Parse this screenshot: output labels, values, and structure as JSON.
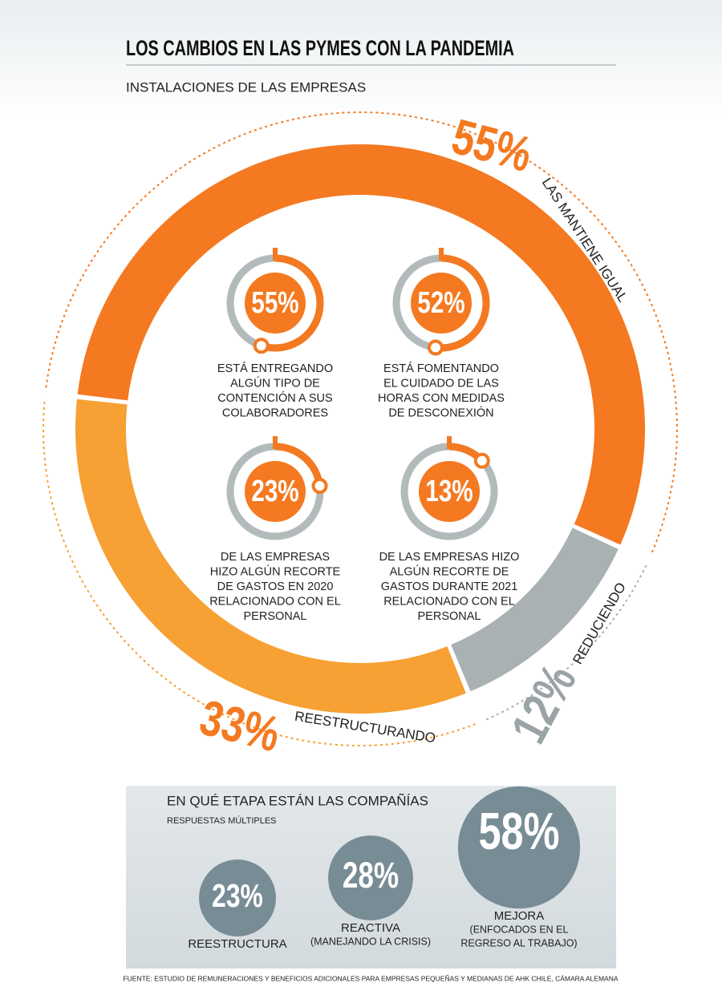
{
  "title": "LOS CAMBIOS EN LAS PYMES CON LA PANDEMIA",
  "subtitle": "INSTALACIONES DE LAS EMPRESAS",
  "chart_data": {
    "type": "donut",
    "categories": [
      "LAS MANTIENE IGUAL",
      "REDUCIENDO",
      "REESTRUCTURANDO"
    ],
    "values": [
      55,
      12,
      33
    ],
    "value_labels": [
      "55%",
      "12%",
      "33%"
    ],
    "colors": [
      "#f47920",
      "#a9b1b3",
      "#f7a033"
    ]
  },
  "gauges": [
    {
      "value": 55,
      "label": "55%",
      "text": [
        "ESTÁ ENTREGANDO",
        "ALGÚN TIPO DE",
        "CONTENCIÓN A SUS",
        "COLABORADORES"
      ]
    },
    {
      "value": 52,
      "label": "52%",
      "text": [
        "ESTÁ FOMENTANDO",
        "EL CUIDADO DE LAS",
        "HORAS CON MEDIDAS",
        "DE DESCONEXIÓN"
      ]
    },
    {
      "value": 23,
      "label": "23%",
      "text": [
        "DE LAS  EMPRESAS",
        "HIZO ALGÚN RECORTE",
        "DE GASTOS EN 2020",
        "RELACIONADO CON EL",
        "PERSONAL"
      ]
    },
    {
      "value": 13,
      "label": "13%",
      "text": [
        "DE LAS EMPRESAS HIZO",
        "ALGÚN RECORTE DE",
        "GASTOS DURANTE 2021",
        "RELACIONADO CON EL",
        "PERSONAL"
      ]
    }
  ],
  "stages": {
    "title": "EN QUÉ ETAPA ESTÁN LAS COMPAÑÍAS",
    "subtitle": "RESPUESTAS MÚLTIPLES",
    "items": [
      {
        "value": 23,
        "label": "23%",
        "text": [
          "REESTRUCTURA"
        ]
      },
      {
        "value": 28,
        "label": "28%",
        "text": [
          "REACTIVA",
          "(MANEJANDO LA CRISIS)"
        ]
      },
      {
        "value": 58,
        "label": "58%",
        "text": [
          "MEJORA",
          "(ENFOCADOS EN EL",
          "REGRESO AL TRABAJO)"
        ]
      }
    ]
  },
  "source": "FUENTE: ESTUDIO DE REMUNERACIONES Y BENEFICIOS ADICIONALES PARA EMPRESAS PEQUEÑAS Y MEDIANAS DE AHK CHILE, CÁMARA ALEMANA"
}
